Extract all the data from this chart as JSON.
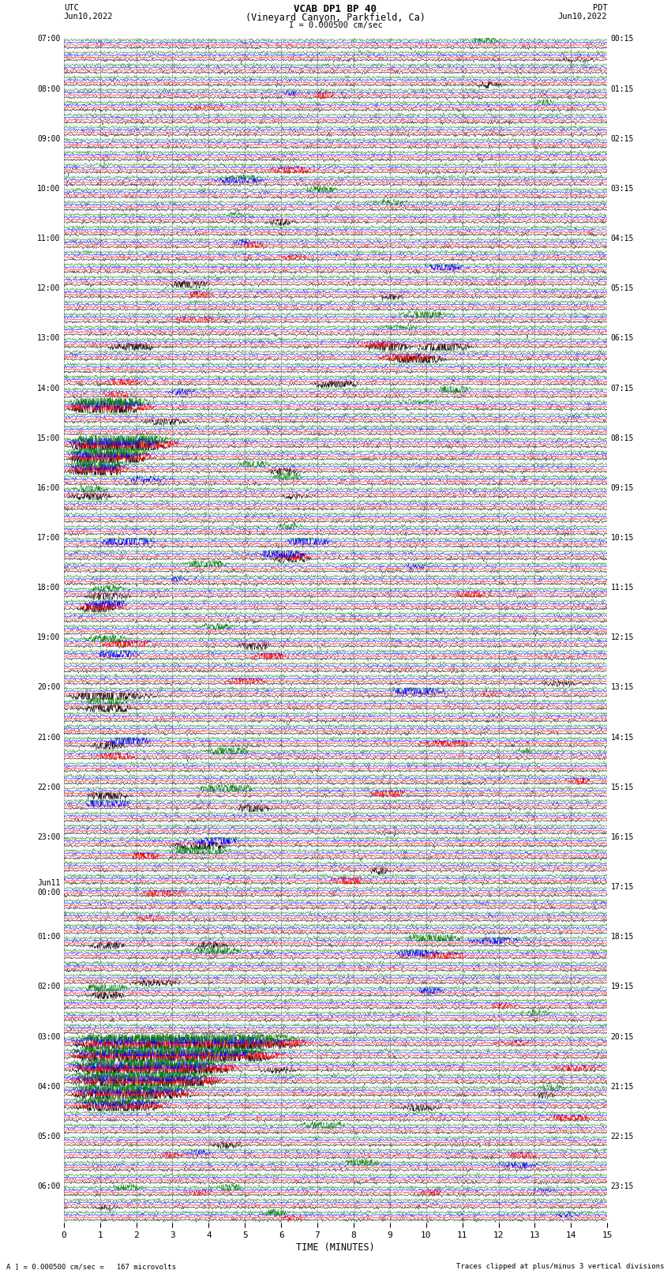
{
  "title_line1": "VCAB DP1 BP 40",
  "title_line2": "(Vineyard Canyon, Parkfield, Ca)",
  "scale_text": "I = 0.000500 cm/sec",
  "left_header_line1": "UTC",
  "left_header_line2": "Jun10,2022",
  "right_header_line1": "PDT",
  "right_header_line2": "Jun10,2022",
  "xlabel": "TIME (MINUTES)",
  "bottom_left_text": "A ] = 0.000500 cm/sec =   167 microvolts",
  "bottom_right_text": "Traces clipped at plus/minus 3 vertical divisions",
  "xlim": [
    0,
    15
  ],
  "xticks": [
    0,
    1,
    2,
    3,
    4,
    5,
    6,
    7,
    8,
    9,
    10,
    11,
    12,
    13,
    14,
    15
  ],
  "background_color": "#ffffff",
  "trace_colors": [
    "#000000",
    "#ff0000",
    "#0000ff",
    "#008000"
  ],
  "left_times": [
    "07:00",
    "",
    "",
    "",
    "08:00",
    "",
    "",
    "",
    "09:00",
    "",
    "",
    "",
    "10:00",
    "",
    "",
    "",
    "11:00",
    "",
    "",
    "",
    "12:00",
    "",
    "",
    "",
    "13:00",
    "",
    "",
    "",
    "14:00",
    "",
    "",
    "",
    "15:00",
    "",
    "",
    "",
    "16:00",
    "",
    "",
    "",
    "17:00",
    "",
    "",
    "",
    "18:00",
    "",
    "",
    "",
    "19:00",
    "",
    "",
    "",
    "20:00",
    "",
    "",
    "",
    "21:00",
    "",
    "",
    "",
    "22:00",
    "",
    "",
    "",
    "23:00",
    "",
    "",
    "",
    "Jun11\n00:00",
    "",
    "",
    "",
    "01:00",
    "",
    "",
    "",
    "02:00",
    "",
    "",
    "",
    "03:00",
    "",
    "",
    "",
    "04:00",
    "",
    "",
    "",
    "05:00",
    "",
    "",
    "",
    "06:00",
    "",
    ""
  ],
  "right_times": [
    "00:15",
    "",
    "",
    "",
    "01:15",
    "",
    "",
    "",
    "02:15",
    "",
    "",
    "",
    "03:15",
    "",
    "",
    "",
    "04:15",
    "",
    "",
    "",
    "05:15",
    "",
    "",
    "",
    "06:15",
    "",
    "",
    "",
    "07:15",
    "",
    "",
    "",
    "08:15",
    "",
    "",
    "",
    "09:15",
    "",
    "",
    "",
    "10:15",
    "",
    "",
    "",
    "11:15",
    "",
    "",
    "",
    "12:15",
    "",
    "",
    "",
    "13:15",
    "",
    "",
    "",
    "14:15",
    "",
    "",
    "",
    "15:15",
    "",
    "",
    "",
    "16:15",
    "",
    "",
    "",
    "17:15",
    "",
    "",
    "",
    "18:15",
    "",
    "",
    "",
    "19:15",
    "",
    "",
    "",
    "20:15",
    "",
    "",
    "",
    "21:15",
    "",
    "",
    "",
    "22:15",
    "",
    "",
    "",
    "23:15",
    "",
    ""
  ],
  "num_rows": 95,
  "noise_seed": 42
}
